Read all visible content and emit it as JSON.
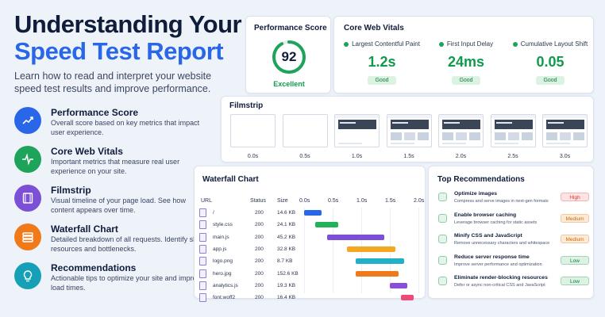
{
  "title": {
    "line1": "Understanding Your",
    "line2": "Speed Test Report"
  },
  "subtitle": "Learn how to read and interpret your website speed test results and improve performance.",
  "features": [
    {
      "title": "Performance Score",
      "desc": "Overall score based on key metrics that impact user experience.",
      "color": "#2a66e8",
      "icon": "trend-chart-icon"
    },
    {
      "title": "Core Web Vitals",
      "desc": "Important metrics that measure real user experience on your site.",
      "color": "#1ea35a",
      "icon": "pulse-icon"
    },
    {
      "title": "Filmstrip",
      "desc": "Visual timeline of your page load. See how content appears over time.",
      "color": "#7b4fd6",
      "icon": "film-icon"
    },
    {
      "title": "Waterfall Chart",
      "desc": "Detailed breakdown of all requests. Identify slow resources and bottlenecks.",
      "color": "#f07a1a",
      "icon": "layers-icon"
    },
    {
      "title": "Recommendations",
      "desc": "Actionable tips to optimize your site and improve load times.",
      "color": "#16a0b8",
      "icon": "lightbulb-icon"
    }
  ],
  "performance": {
    "title": "Performance Score",
    "score": "92",
    "score_fraction": 0.92,
    "label": "Excellent",
    "color": "#1ea35a"
  },
  "vitals": {
    "title": "Core Web Vitals",
    "items": [
      {
        "label": "Largest Contentful Paint",
        "value": "1.2s",
        "status": "Good"
      },
      {
        "label": "First Input Delay",
        "value": "24ms",
        "status": "Good"
      },
      {
        "label": "Cumulative Layout Shift",
        "value": "0.05",
        "status": "Good"
      }
    ]
  },
  "filmstrip": {
    "title": "Filmstrip",
    "frames": [
      {
        "time": "0.0s",
        "state": "blank"
      },
      {
        "time": "0.5s",
        "state": "blank"
      },
      {
        "time": "1.0s",
        "state": "partial"
      },
      {
        "time": "1.5s",
        "state": "full"
      },
      {
        "time": "2.0s",
        "state": "full"
      },
      {
        "time": "2.5s",
        "state": "full"
      },
      {
        "time": "3.0s",
        "state": "full"
      }
    ]
  },
  "waterfall": {
    "title": "Waterfall Chart",
    "headers": {
      "url": "URL",
      "status": "Status",
      "size": "Size"
    },
    "ticks": [
      "0.0s",
      "0.5s",
      "1.0s",
      "1.5s",
      "2.0s"
    ],
    "rows": [
      {
        "url": "/",
        "status": "200",
        "size": "14.6 KB",
        "start": 0.0,
        "end": 0.3,
        "color": "#2a66e8"
      },
      {
        "url": "style.css",
        "status": "200",
        "size": "24.1 KB",
        "start": 0.2,
        "end": 0.6,
        "color": "#22b35a"
      },
      {
        "url": "main.js",
        "status": "200",
        "size": "45.2 KB",
        "start": 0.4,
        "end": 1.4,
        "color": "#7b4fd6"
      },
      {
        "url": "app.js",
        "status": "200",
        "size": "32.8 KB",
        "start": 0.75,
        "end": 1.6,
        "color": "#f5a623"
      },
      {
        "url": "logo.png",
        "status": "200",
        "size": "8.7 KB",
        "start": 0.9,
        "end": 1.75,
        "color": "#22b0c8"
      },
      {
        "url": "hero.jpg",
        "status": "200",
        "size": "152.6 KB",
        "start": 0.9,
        "end": 1.65,
        "color": "#f07a1a"
      },
      {
        "url": "analytics.js",
        "status": "200",
        "size": "19.3 KB",
        "start": 1.5,
        "end": 1.8,
        "color": "#8a4fd6"
      },
      {
        "url": "font.woff2",
        "status": "200",
        "size": "16.4 KB",
        "start": 1.7,
        "end": 1.92,
        "color": "#ef4a78"
      }
    ]
  },
  "recommendations": {
    "title": "Top Recommendations",
    "items": [
      {
        "title": "Optimize images",
        "desc": "Compress and serve images in next-gen formats",
        "priority": "High",
        "bg": "#fde3e3",
        "fg": "#d23a3a"
      },
      {
        "title": "Enable browser caching",
        "desc": "Leverage browser caching for static assets",
        "priority": "Medium",
        "bg": "#fdebd6",
        "fg": "#c86a10"
      },
      {
        "title": "Minify CSS and JavaScript",
        "desc": "Remove unnecessary characters and whitespace",
        "priority": "Medium",
        "bg": "#fdebd6",
        "fg": "#c86a10"
      },
      {
        "title": "Reduce server response time",
        "desc": "Improve server performance and optimization",
        "priority": "Low",
        "bg": "#dcf3e4",
        "fg": "#0f7a3c"
      },
      {
        "title": "Eliminate render-blocking resources",
        "desc": "Defer or async non-critical CSS and JavaScript",
        "priority": "Low",
        "bg": "#dcf3e4",
        "fg": "#0f7a3c"
      }
    ]
  }
}
